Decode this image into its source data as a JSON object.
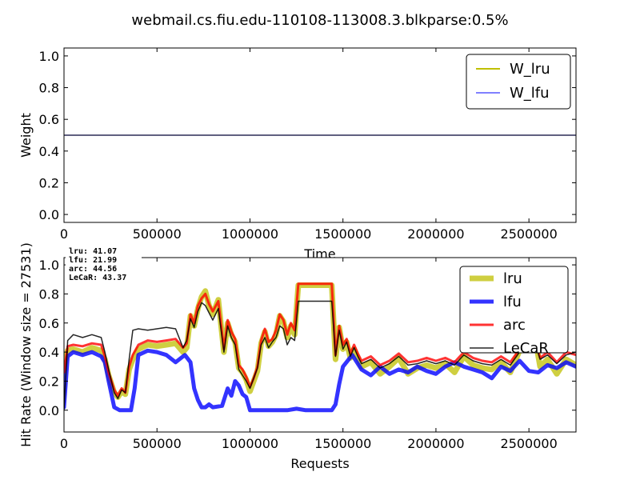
{
  "figure": {
    "title": "webmail.cs.fiu.edu-110108-113008.3.blkparse:0.5%"
  },
  "chart_data": [
    {
      "type": "line",
      "xlabel": "Time",
      "ylabel": "Weight",
      "xlim": [
        0,
        2753100
      ],
      "ylim": [
        -0.05,
        1.05
      ],
      "xticks": [
        0,
        500000,
        1000000,
        1500000,
        2000000,
        2500000
      ],
      "yticks": [
        0.0,
        0.2,
        0.4,
        0.6,
        0.8,
        1.0
      ],
      "legend_position": "top-right",
      "grid": false,
      "series": [
        {
          "name": "W_lru",
          "color": "#bfbf00",
          "x": [
            0,
            2753100
          ],
          "y": [
            0.5,
            0.5
          ]
        },
        {
          "name": "W_lfu",
          "color": "#0000ff",
          "x": [
            0,
            2753100
          ],
          "y": [
            0.5,
            0.5
          ]
        }
      ]
    },
    {
      "type": "line",
      "xlabel": "Requests",
      "ylabel": "Hit Rate (Window size = 27531)",
      "xlim": [
        0,
        2753100
      ],
      "ylim": [
        -0.15,
        1.05
      ],
      "xticks": [
        0,
        500000,
        1000000,
        1500000,
        2000000,
        2500000
      ],
      "yticks": [
        0.0,
        0.2,
        0.4,
        0.6,
        0.8,
        1.0
      ],
      "legend_position": "top-right",
      "grid": false,
      "annotations": [
        "lru:  41.07",
        "lfu:  21.99",
        "arc:  44.56",
        "LeCaR:  43.37"
      ],
      "series": [
        {
          "name": "lru",
          "color": "#bfbf00",
          "x": [
            0,
            20000,
            50000,
            100000,
            150000,
            200000,
            220000,
            240000,
            270000,
            290000,
            310000,
            330000,
            350000,
            370000,
            400000,
            450000,
            500000,
            550000,
            600000,
            640000,
            660000,
            680000,
            700000,
            720000,
            740000,
            760000,
            780000,
            800000,
            830000,
            860000,
            880000,
            900000,
            920000,
            940000,
            960000,
            980000,
            1000000,
            1020000,
            1040000,
            1060000,
            1080000,
            1100000,
            1120000,
            1140000,
            1160000,
            1180000,
            1200000,
            1220000,
            1240000,
            1260000,
            1300000,
            1350000,
            1400000,
            1440000,
            1460000,
            1480000,
            1500000,
            1520000,
            1540000,
            1560000,
            1580000,
            1600000,
            1650000,
            1700000,
            1750000,
            1800000,
            1850000,
            1900000,
            1950000,
            2000000,
            2050000,
            2100000,
            2150000,
            2200000,
            2250000,
            2300000,
            2350000,
            2400000,
            2450000,
            2500000,
            2530000,
            2560000,
            2600000,
            2650000,
            2700000,
            2753100
          ],
          "y": [
            0.3,
            0.41,
            0.42,
            0.4,
            0.43,
            0.41,
            0.35,
            0.24,
            0.12,
            0.09,
            0.13,
            0.11,
            0.28,
            0.35,
            0.42,
            0.45,
            0.44,
            0.45,
            0.46,
            0.4,
            0.43,
            0.65,
            0.58,
            0.7,
            0.78,
            0.82,
            0.72,
            0.66,
            0.76,
            0.4,
            0.6,
            0.52,
            0.47,
            0.29,
            0.26,
            0.21,
            0.13,
            0.2,
            0.27,
            0.46,
            0.54,
            0.44,
            0.47,
            0.52,
            0.65,
            0.61,
            0.5,
            0.58,
            0.52,
            0.86,
            0.86,
            0.86,
            0.86,
            0.86,
            0.35,
            0.57,
            0.42,
            0.47,
            0.36,
            0.42,
            0.36,
            0.3,
            0.33,
            0.25,
            0.3,
            0.36,
            0.25,
            0.29,
            0.31,
            0.29,
            0.32,
            0.26,
            0.37,
            0.31,
            0.29,
            0.28,
            0.33,
            0.26,
            0.41,
            0.48,
            0.52,
            0.3,
            0.35,
            0.25,
            0.35,
            0.31
          ]
        },
        {
          "name": "lfu",
          "color": "#0000ff",
          "x": [
            0,
            20000,
            50000,
            100000,
            150000,
            200000,
            220000,
            240000,
            270000,
            300000,
            330000,
            360000,
            380000,
            400000,
            450000,
            500000,
            550000,
            600000,
            650000,
            680000,
            700000,
            720000,
            740000,
            760000,
            780000,
            800000,
            850000,
            880000,
            900000,
            920000,
            940000,
            960000,
            980000,
            1000000,
            1050000,
            1100000,
            1150000,
            1200000,
            1250000,
            1300000,
            1350000,
            1400000,
            1440000,
            1460000,
            1480000,
            1500000,
            1550000,
            1600000,
            1650000,
            1700000,
            1750000,
            1800000,
            1850000,
            1900000,
            1950000,
            2000000,
            2050000,
            2100000,
            2150000,
            2200000,
            2250000,
            2300000,
            2350000,
            2400000,
            2450000,
            2500000,
            2550000,
            2600000,
            2650000,
            2700000,
            2753100
          ],
          "y": [
            0.02,
            0.37,
            0.4,
            0.38,
            0.4,
            0.37,
            0.33,
            0.2,
            0.02,
            0.0,
            0.0,
            0.0,
            0.15,
            0.38,
            0.41,
            0.4,
            0.38,
            0.33,
            0.38,
            0.33,
            0.15,
            0.07,
            0.02,
            0.02,
            0.04,
            0.02,
            0.03,
            0.15,
            0.1,
            0.2,
            0.17,
            0.11,
            0.09,
            0.0,
            0.0,
            0.0,
            0.0,
            0.0,
            0.01,
            0.0,
            0.0,
            0.0,
            0.0,
            0.04,
            0.18,
            0.3,
            0.38,
            0.28,
            0.24,
            0.3,
            0.25,
            0.28,
            0.26,
            0.3,
            0.27,
            0.25,
            0.3,
            0.33,
            0.3,
            0.28,
            0.26,
            0.22,
            0.3,
            0.27,
            0.34,
            0.27,
            0.26,
            0.31,
            0.29,
            0.33,
            0.3
          ]
        },
        {
          "name": "arc",
          "color": "#ff0000",
          "x": [
            0,
            20000,
            50000,
            100000,
            150000,
            200000,
            220000,
            240000,
            270000,
            290000,
            310000,
            330000,
            350000,
            370000,
            400000,
            450000,
            500000,
            550000,
            600000,
            640000,
            660000,
            680000,
            700000,
            720000,
            740000,
            760000,
            780000,
            800000,
            830000,
            860000,
            880000,
            900000,
            920000,
            940000,
            960000,
            980000,
            1000000,
            1020000,
            1040000,
            1060000,
            1080000,
            1100000,
            1120000,
            1140000,
            1160000,
            1180000,
            1200000,
            1220000,
            1240000,
            1260000,
            1300000,
            1350000,
            1400000,
            1440000,
            1460000,
            1480000,
            1500000,
            1520000,
            1540000,
            1560000,
            1580000,
            1600000,
            1650000,
            1700000,
            1750000,
            1800000,
            1850000,
            1900000,
            1950000,
            2000000,
            2050000,
            2100000,
            2150000,
            2200000,
            2250000,
            2300000,
            2350000,
            2400000,
            2450000,
            2500000,
            2530000,
            2560000,
            2600000,
            2650000,
            2700000,
            2753100
          ],
          "y": [
            0.26,
            0.44,
            0.45,
            0.44,
            0.46,
            0.45,
            0.37,
            0.26,
            0.14,
            0.1,
            0.15,
            0.12,
            0.3,
            0.38,
            0.45,
            0.48,
            0.47,
            0.48,
            0.49,
            0.43,
            0.46,
            0.66,
            0.6,
            0.72,
            0.77,
            0.8,
            0.73,
            0.68,
            0.75,
            0.42,
            0.62,
            0.54,
            0.49,
            0.31,
            0.28,
            0.23,
            0.16,
            0.22,
            0.3,
            0.48,
            0.56,
            0.47,
            0.49,
            0.55,
            0.66,
            0.62,
            0.52,
            0.6,
            0.55,
            0.87,
            0.87,
            0.87,
            0.87,
            0.87,
            0.38,
            0.58,
            0.45,
            0.49,
            0.39,
            0.45,
            0.39,
            0.34,
            0.37,
            0.31,
            0.34,
            0.39,
            0.33,
            0.34,
            0.36,
            0.34,
            0.36,
            0.33,
            0.4,
            0.36,
            0.34,
            0.33,
            0.37,
            0.33,
            0.42,
            0.46,
            0.5,
            0.36,
            0.4,
            0.33,
            0.4,
            0.38
          ]
        },
        {
          "name": "LeCaR",
          "color": "#000000",
          "x": [
            0,
            20000,
            50000,
            100000,
            150000,
            200000,
            220000,
            240000,
            270000,
            290000,
            310000,
            330000,
            350000,
            370000,
            400000,
            450000,
            500000,
            550000,
            600000,
            640000,
            660000,
            680000,
            700000,
            720000,
            740000,
            760000,
            780000,
            800000,
            830000,
            860000,
            880000,
            900000,
            920000,
            940000,
            960000,
            980000,
            1000000,
            1020000,
            1040000,
            1060000,
            1080000,
            1100000,
            1120000,
            1140000,
            1160000,
            1180000,
            1200000,
            1220000,
            1240000,
            1260000,
            1300000,
            1350000,
            1400000,
            1440000,
            1460000,
            1480000,
            1500000,
            1520000,
            1540000,
            1560000,
            1580000,
            1600000,
            1650000,
            1700000,
            1750000,
            1800000,
            1850000,
            1900000,
            1950000,
            2000000,
            2050000,
            2100000,
            2150000,
            2200000,
            2250000,
            2300000,
            2350000,
            2400000,
            2450000,
            2500000,
            2530000,
            2560000,
            2600000,
            2650000,
            2700000,
            2753100
          ],
          "y": [
            0.0,
            0.48,
            0.52,
            0.5,
            0.52,
            0.5,
            0.4,
            0.28,
            0.12,
            0.08,
            0.14,
            0.12,
            0.35,
            0.55,
            0.56,
            0.55,
            0.56,
            0.57,
            0.56,
            0.43,
            0.48,
            0.63,
            0.57,
            0.68,
            0.74,
            0.72,
            0.67,
            0.62,
            0.7,
            0.4,
            0.58,
            0.5,
            0.45,
            0.28,
            0.24,
            0.2,
            0.15,
            0.22,
            0.29,
            0.45,
            0.5,
            0.43,
            0.47,
            0.5,
            0.58,
            0.56,
            0.45,
            0.5,
            0.48,
            0.75,
            0.75,
            0.75,
            0.75,
            0.75,
            0.37,
            0.55,
            0.42,
            0.47,
            0.37,
            0.43,
            0.37,
            0.32,
            0.35,
            0.29,
            0.32,
            0.37,
            0.31,
            0.32,
            0.34,
            0.32,
            0.34,
            0.31,
            0.38,
            0.34,
            0.32,
            0.31,
            0.35,
            0.31,
            0.4,
            0.44,
            0.48,
            0.35,
            0.38,
            0.32,
            0.38,
            0.4
          ]
        }
      ]
    }
  ]
}
